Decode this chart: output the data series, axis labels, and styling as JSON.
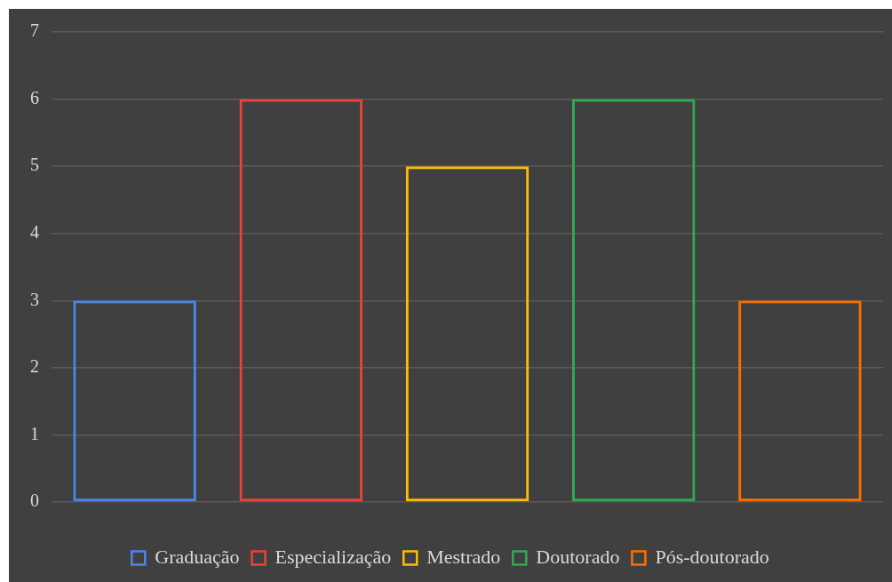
{
  "chart_data": {
    "type": "bar",
    "categories": [
      null,
      null,
      null,
      null,
      null
    ],
    "series": [
      {
        "name": "Graduação",
        "color": "#4a86e8",
        "values": [
          3,
          null,
          null,
          null,
          null
        ]
      },
      {
        "name": "Especialização",
        "color": "#ea4335",
        "values": [
          null,
          6,
          null,
          null,
          null
        ]
      },
      {
        "name": "Mestrado",
        "color": "#fbbc04",
        "values": [
          null,
          null,
          5,
          null,
          null
        ]
      },
      {
        "name": "Doutorado",
        "color": "#34a853",
        "values": [
          null,
          null,
          null,
          6,
          null
        ]
      },
      {
        "name": "Pós-doutorado",
        "color": "#ff6d01",
        "values": [
          null,
          null,
          null,
          null,
          3
        ]
      }
    ],
    "ylim": [
      0,
      7
    ],
    "yticks": [
      0,
      1,
      2,
      3,
      4,
      5,
      6,
      7
    ],
    "grid": "y",
    "legend": "bottom"
  }
}
